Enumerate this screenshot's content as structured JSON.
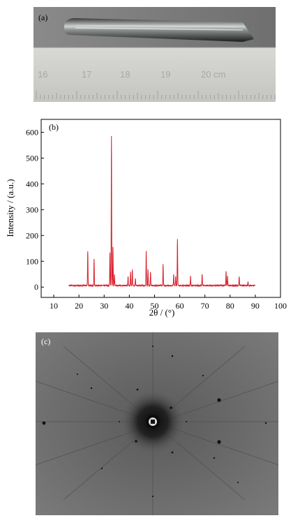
{
  "figure": {
    "panel_a": {
      "label": "(a)",
      "ruler_numbers": [
        "16",
        "17",
        "18",
        "19",
        "20 cm"
      ]
    },
    "panel_b": {
      "label": "(b)"
    },
    "panel_c": {
      "label": "(c)"
    }
  },
  "chart_data": {
    "type": "line",
    "xlabel": "2θ / (°)",
    "ylabel": "Intensity / (a.u.)",
    "xlim": [
      5,
      100
    ],
    "ylim": [
      -40,
      650
    ],
    "xticks": [
      10,
      20,
      30,
      40,
      50,
      60,
      70,
      80,
      90,
      100
    ],
    "xtick_labels": [
      "10",
      "20",
      "30",
      "40",
      "50",
      "60",
      "70",
      "80",
      "90",
      "100"
    ],
    "yticks": [
      0,
      100,
      200,
      300,
      400,
      500,
      600
    ],
    "ytick_labels": [
      "0",
      "100",
      "200",
      "300",
      "400",
      "500",
      "600"
    ],
    "grid": false,
    "line_color": "#d81e2b",
    "x_range": [
      16,
      90
    ],
    "baseline": 6,
    "peaks": [
      {
        "x": 23.5,
        "y": 140
      },
      {
        "x": 26.0,
        "y": 108
      },
      {
        "x": 32.3,
        "y": 135
      },
      {
        "x": 32.9,
        "y": 585
      },
      {
        "x": 33.5,
        "y": 155
      },
      {
        "x": 34.1,
        "y": 48
      },
      {
        "x": 39.5,
        "y": 40
      },
      {
        "x": 40.5,
        "y": 60
      },
      {
        "x": 41.2,
        "y": 68
      },
      {
        "x": 42.4,
        "y": 35
      },
      {
        "x": 46.7,
        "y": 138
      },
      {
        "x": 47.4,
        "y": 68
      },
      {
        "x": 48.4,
        "y": 60
      },
      {
        "x": 53.4,
        "y": 88
      },
      {
        "x": 57.6,
        "y": 50
      },
      {
        "x": 58.4,
        "y": 42
      },
      {
        "x": 59.1,
        "y": 188
      },
      {
        "x": 64.3,
        "y": 42
      },
      {
        "x": 68.9,
        "y": 50
      },
      {
        "x": 78.4,
        "y": 62
      },
      {
        "x": 79.0,
        "y": 42
      },
      {
        "x": 83.6,
        "y": 42
      },
      {
        "x": 87.1,
        "y": 20
      }
    ]
  }
}
